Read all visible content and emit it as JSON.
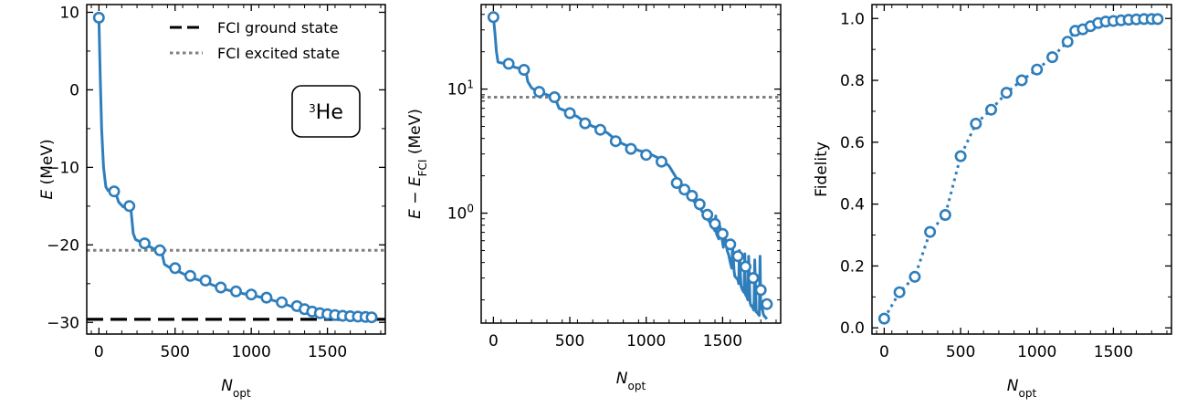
{
  "colors": {
    "series": "#2e7ebc",
    "ground": "#000000",
    "excited": "#808080"
  },
  "chart_data": [
    {
      "type": "line",
      "name": "energy",
      "xlabel": {
        "main": "N",
        "sub": "opt"
      },
      "ylabel": {
        "main": "E",
        "rest": " (MeV)"
      },
      "xlim": [
        -80,
        1880
      ],
      "ylim": [
        -31.5,
        11
      ],
      "yscale": "linear",
      "xticks": [
        0,
        500,
        1000,
        1500
      ],
      "xtick_labels": [
        "0",
        "500",
        "1000",
        "1500"
      ],
      "yticks": [
        10,
        0,
        -10,
        -20,
        -30
      ],
      "ytick_labels": [
        "10",
        "0",
        "−10",
        "−20",
        "−30"
      ],
      "hlines": [
        {
          "name": "FCI ground state",
          "y": -29.6,
          "style": "dashed",
          "color": "#000000"
        },
        {
          "name": "FCI excited state",
          "y": -20.7,
          "style": "dotted",
          "color": "#808080"
        }
      ],
      "legend": {
        "location": "top-right",
        "entries": [
          "FCI ground state",
          "FCI excited state"
        ]
      },
      "annotation": {
        "sup": "3",
        "text": "He",
        "location": "upper-right"
      },
      "series": [
        {
          "name": "E",
          "line": {
            "x": [
              0,
              8,
              18,
              30,
              45,
              60,
              90,
              110,
              130,
              160,
              185,
              200,
              212,
              225,
              240,
              270,
              300,
              330,
              360,
              390,
              410,
              430,
              470,
              500,
              550,
              600,
              700,
              800,
              900,
              1000,
              1100,
              1200,
              1300,
              1400,
              1500,
              1600,
              1700,
              1790
            ],
            "y": [
              9.3,
              2.0,
              -5.0,
              -10.0,
              -12.5,
              -13.0,
              -13.1,
              -13.3,
              -14.5,
              -15.1,
              -15.1,
              -15.0,
              -15.8,
              -18.5,
              -19.3,
              -19.6,
              -19.9,
              -20.2,
              -20.5,
              -20.7,
              -20.8,
              -22.5,
              -23.0,
              -23.2,
              -23.7,
              -24.2,
              -24.8,
              -25.6,
              -26.1,
              -26.5,
              -26.9,
              -27.5,
              -28.2,
              -28.7,
              -29.1,
              -29.3,
              -29.35,
              -29.4
            ]
          },
          "markers": {
            "x": [
              0,
              100,
              200,
              300,
              400,
              500,
              600,
              700,
              800,
              900,
              1000,
              1100,
              1200,
              1300,
              1350,
              1400,
              1450,
              1500,
              1550,
              1600,
              1650,
              1700,
              1750,
              1790
            ],
            "y": [
              9.3,
              -13.1,
              -15.0,
              -19.8,
              -20.7,
              -23.0,
              -24.0,
              -24.6,
              -25.5,
              -26.0,
              -26.4,
              -26.8,
              -27.4,
              -27.9,
              -28.3,
              -28.6,
              -28.8,
              -28.95,
              -29.05,
              -29.15,
              -29.2,
              -29.25,
              -29.3,
              -29.35
            ]
          }
        }
      ]
    },
    {
      "type": "line",
      "name": "energy-difference",
      "xlabel": {
        "main": "N",
        "sub": "opt"
      },
      "ylabel": {
        "main": "E − E",
        "sub": "FCI",
        "rest": " (MeV)"
      },
      "xlim": [
        -80,
        1880
      ],
      "ylim": [
        0.13,
        48
      ],
      "yscale": "log",
      "xticks": [
        0,
        500,
        1000,
        1500
      ],
      "xtick_labels": [
        "0",
        "500",
        "1000",
        "1500"
      ],
      "yticks": [
        10,
        1
      ],
      "ytick_labels": [
        {
          "base": "10",
          "exp": "1"
        },
        {
          "base": "10",
          "exp": "0"
        }
      ],
      "hlines": [
        {
          "name": "FCI excited state",
          "y": 8.6,
          "style": "dotted",
          "color": "#808080"
        }
      ],
      "series": [
        {
          "name": "E-EFCI",
          "line": {
            "x": [
              0,
              10,
              20,
              30,
              45,
              60,
              90,
              110,
              140,
              170,
              200,
              212,
              225,
              250,
              280,
              300,
              330,
              360,
              400,
              430,
              470,
              500,
              550,
              600,
              650,
              700,
              750,
              800,
              850,
              900,
              950,
              1000,
              1050,
              1100,
              1150,
              1200,
              1250,
              1300,
              1350,
              1400,
              1430,
              1450,
              1455,
              1460,
              1475,
              1480,
              1500,
              1505,
              1510,
              1530,
              1540,
              1550,
              1560,
              1565,
              1575,
              1580,
              1600,
              1605,
              1610,
              1620,
              1625,
              1630,
              1640,
              1645,
              1650,
              1660,
              1665,
              1670,
              1680,
              1685,
              1690,
              1700,
              1705,
              1710,
              1720,
              1725,
              1730,
              1740,
              1745,
              1750,
              1760,
              1765,
              1770,
              1780,
              1790
            ],
            "y": [
              38,
              28,
              20,
              16.5,
              16.3,
              16.2,
              16.0,
              15.6,
              15.0,
              14.7,
              14.5,
              14.0,
              11.5,
              10.2,
              9.7,
              9.5,
              9.2,
              8.9,
              8.7,
              7.0,
              6.7,
              6.4,
              6.0,
              5.4,
              5.0,
              4.8,
              4.4,
              3.9,
              3.6,
              3.4,
              3.2,
              3.1,
              2.9,
              2.7,
              2.4,
              1.9,
              1.5,
              1.3,
              1.1,
              0.9,
              0.8,
              0.72,
              0.95,
              0.68,
              0.62,
              0.8,
              0.58,
              0.53,
              0.72,
              0.5,
              0.46,
              0.4,
              0.36,
              0.55,
              0.34,
              0.31,
              0.29,
              0.27,
              0.5,
              0.26,
              0.25,
              0.24,
              0.23,
              0.47,
              0.22,
              0.21,
              0.2,
              0.45,
              0.19,
              0.18,
              0.18,
              0.17,
              0.165,
              0.42,
              0.16,
              0.16,
              0.155,
              0.15,
              0.45,
              0.17,
              0.17,
              0.155,
              0.15,
              0.145,
              0.14
            ]
          },
          "markers": {
            "x": [
              0,
              100,
              200,
              300,
              400,
              500,
              600,
              700,
              800,
              900,
              1000,
              1100,
              1200,
              1250,
              1300,
              1350,
              1400,
              1450,
              1500,
              1550,
              1600,
              1650,
              1700,
              1750,
              1790
            ],
            "y": [
              38,
              16.0,
              14.3,
              9.5,
              8.6,
              6.4,
              5.3,
              4.7,
              3.8,
              3.3,
              2.95,
              2.6,
              1.75,
              1.55,
              1.38,
              1.18,
              0.97,
              0.82,
              0.68,
              0.56,
              0.45,
              0.37,
              0.3,
              0.24,
              0.185
            ]
          }
        }
      ]
    },
    {
      "type": "line",
      "name": "fidelity",
      "xlabel": {
        "main": "N",
        "sub": "opt"
      },
      "ylabel": {
        "main": "Fidelity",
        "rest": ""
      },
      "xlim": [
        -80,
        1880
      ],
      "ylim": [
        -0.02,
        1.045
      ],
      "yscale": "linear",
      "xticks": [
        0,
        500,
        1000,
        1500
      ],
      "xtick_labels": [
        "0",
        "500",
        "1000",
        "1500"
      ],
      "yticks": [
        0.0,
        0.2,
        0.4,
        0.6,
        0.8,
        1.0
      ],
      "ytick_labels": [
        "0.0",
        "0.2",
        "0.4",
        "0.6",
        "0.8",
        "1.0"
      ],
      "series": [
        {
          "name": "Fidelity",
          "markers": {
            "x": [
              0,
              100,
              200,
              300,
              400,
              500,
              600,
              700,
              800,
              900,
              1000,
              1100,
              1200,
              1250,
              1300,
              1350,
              1400,
              1450,
              1500,
              1550,
              1600,
              1650,
              1700,
              1750,
              1790
            ],
            "y": [
              0.03,
              0.115,
              0.165,
              0.31,
              0.365,
              0.555,
              0.66,
              0.705,
              0.76,
              0.8,
              0.835,
              0.875,
              0.925,
              0.96,
              0.965,
              0.975,
              0.985,
              0.99,
              0.992,
              0.994,
              0.996,
              0.997,
              0.998,
              0.998,
              0.998
            ]
          }
        }
      ]
    }
  ]
}
